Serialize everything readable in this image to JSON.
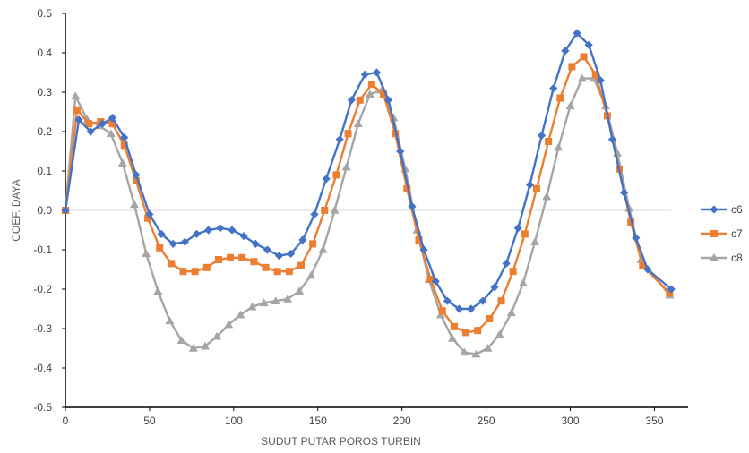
{
  "chart_data": {
    "type": "line",
    "title": "",
    "xlabel": "SUDUT PUTAR POROS TURBIN",
    "ylabel": "COEF. DAYA",
    "xlim": [
      0,
      370
    ],
    "ylim": [
      -0.5,
      0.5
    ],
    "x_ticks": [
      0,
      50,
      100,
      150,
      200,
      250,
      300,
      350
    ],
    "y_ticks": [
      0.5,
      0.4,
      0.3,
      0.2,
      0.1,
      0.0,
      -0.1,
      -0.2,
      -0.3,
      -0.4,
      -0.5
    ],
    "x_tick_labels": [
      "0",
      "50",
      "100",
      "150",
      "200",
      "250",
      "300",
      "350"
    ],
    "y_tick_labels": [
      "0.5",
      "0.4",
      "0.3",
      "0.2",
      "0.1",
      "0.0",
      "-0.1",
      "-0.2",
      "-0.3",
      "-0.4",
      "-0.5"
    ],
    "grid": false,
    "legend_position": "right",
    "series": [
      {
        "name": "c6",
        "color": "#4472C4",
        "marker": "diamond",
        "points": [
          [
            0,
            0
          ],
          [
            8,
            0.23
          ],
          [
            15,
            0.2
          ],
          [
            22,
            0.22
          ],
          [
            28,
            0.235
          ],
          [
            35,
            0.185
          ],
          [
            42,
            0.09
          ],
          [
            50,
            -0.01
          ],
          [
            57,
            -0.06
          ],
          [
            64,
            -0.085
          ],
          [
            71,
            -0.08
          ],
          [
            78,
            -0.06
          ],
          [
            85,
            -0.05
          ],
          [
            92,
            -0.045
          ],
          [
            99,
            -0.05
          ],
          [
            106,
            -0.065
          ],
          [
            113,
            -0.085
          ],
          [
            120,
            -0.1
          ],
          [
            127,
            -0.115
          ],
          [
            134,
            -0.11
          ],
          [
            141,
            -0.075
          ],
          [
            148,
            -0.01
          ],
          [
            155,
            0.08
          ],
          [
            163,
            0.18
          ],
          [
            170,
            0.28
          ],
          [
            178,
            0.345
          ],
          [
            185,
            0.35
          ],
          [
            192,
            0.28
          ],
          [
            199,
            0.15
          ],
          [
            206,
            0.01
          ],
          [
            213,
            -0.1
          ],
          [
            220,
            -0.18
          ],
          [
            227,
            -0.23
          ],
          [
            234,
            -0.25
          ],
          [
            241,
            -0.25
          ],
          [
            248,
            -0.23
          ],
          [
            255,
            -0.195
          ],
          [
            262,
            -0.135
          ],
          [
            269,
            -0.045
          ],
          [
            276,
            0.065
          ],
          [
            283,
            0.19
          ],
          [
            290,
            0.31
          ],
          [
            297,
            0.405
          ],
          [
            304,
            0.45
          ],
          [
            311,
            0.42
          ],
          [
            318,
            0.33
          ],
          [
            325,
            0.18
          ],
          [
            332,
            0.045
          ],
          [
            339,
            -0.07
          ],
          [
            346,
            -0.15
          ],
          [
            360,
            -0.2
          ]
        ]
      },
      {
        "name": "c7",
        "color": "#ED7D31",
        "marker": "square",
        "points": [
          [
            0,
            0
          ],
          [
            7,
            0.255
          ],
          [
            14,
            0.22
          ],
          [
            21,
            0.225
          ],
          [
            28,
            0.22
          ],
          [
            35,
            0.165
          ],
          [
            42,
            0.075
          ],
          [
            49,
            -0.02
          ],
          [
            56,
            -0.095
          ],
          [
            63,
            -0.135
          ],
          [
            70,
            -0.155
          ],
          [
            77,
            -0.155
          ],
          [
            84,
            -0.145
          ],
          [
            91,
            -0.125
          ],
          [
            98,
            -0.12
          ],
          [
            105,
            -0.12
          ],
          [
            112,
            -0.13
          ],
          [
            119,
            -0.145
          ],
          [
            126,
            -0.155
          ],
          [
            133,
            -0.155
          ],
          [
            140,
            -0.14
          ],
          [
            147,
            -0.085
          ],
          [
            154,
            0.0
          ],
          [
            161,
            0.09
          ],
          [
            168,
            0.195
          ],
          [
            175,
            0.28
          ],
          [
            182,
            0.32
          ],
          [
            189,
            0.295
          ],
          [
            196,
            0.195
          ],
          [
            203,
            0.055
          ],
          [
            210,
            -0.075
          ],
          [
            217,
            -0.175
          ],
          [
            224,
            -0.255
          ],
          [
            231,
            -0.295
          ],
          [
            238,
            -0.31
          ],
          [
            245,
            -0.305
          ],
          [
            252,
            -0.275
          ],
          [
            259,
            -0.23
          ],
          [
            266,
            -0.155
          ],
          [
            273,
            -0.06
          ],
          [
            280,
            0.055
          ],
          [
            287,
            0.175
          ],
          [
            294,
            0.285
          ],
          [
            301,
            0.365
          ],
          [
            308,
            0.39
          ],
          [
            315,
            0.345
          ],
          [
            322,
            0.24
          ],
          [
            329,
            0.105
          ],
          [
            336,
            -0.03
          ],
          [
            343,
            -0.14
          ],
          [
            359,
            -0.21
          ]
        ]
      },
      {
        "name": "c8",
        "color": "#A5A5A5",
        "marker": "triangle",
        "points": [
          [
            0,
            0
          ],
          [
            6,
            0.29
          ],
          [
            13,
            0.23
          ],
          [
            20,
            0.215
          ],
          [
            27,
            0.195
          ],
          [
            34,
            0.12
          ],
          [
            41,
            0.015
          ],
          [
            48,
            -0.11
          ],
          [
            55,
            -0.205
          ],
          [
            62,
            -0.28
          ],
          [
            69,
            -0.33
          ],
          [
            76,
            -0.35
          ],
          [
            83,
            -0.345
          ],
          [
            90,
            -0.32
          ],
          [
            97,
            -0.29
          ],
          [
            104,
            -0.265
          ],
          [
            111,
            -0.245
          ],
          [
            118,
            -0.235
          ],
          [
            125,
            -0.23
          ],
          [
            132,
            -0.225
          ],
          [
            139,
            -0.205
          ],
          [
            146,
            -0.165
          ],
          [
            153,
            -0.1
          ],
          [
            160,
            0.0
          ],
          [
            167,
            0.11
          ],
          [
            174,
            0.22
          ],
          [
            181,
            0.295
          ],
          [
            188,
            0.305
          ],
          [
            195,
            0.235
          ],
          [
            202,
            0.105
          ],
          [
            209,
            -0.05
          ],
          [
            216,
            -0.175
          ],
          [
            223,
            -0.265
          ],
          [
            230,
            -0.325
          ],
          [
            237,
            -0.36
          ],
          [
            244,
            -0.365
          ],
          [
            251,
            -0.35
          ],
          [
            258,
            -0.315
          ],
          [
            265,
            -0.26
          ],
          [
            272,
            -0.185
          ],
          [
            279,
            -0.08
          ],
          [
            286,
            0.035
          ],
          [
            293,
            0.16
          ],
          [
            300,
            0.265
          ],
          [
            307,
            0.335
          ],
          [
            314,
            0.335
          ],
          [
            321,
            0.265
          ],
          [
            328,
            0.145
          ],
          [
            335,
            0.005
          ],
          [
            342,
            -0.125
          ],
          [
            359,
            -0.215
          ]
        ]
      }
    ]
  }
}
